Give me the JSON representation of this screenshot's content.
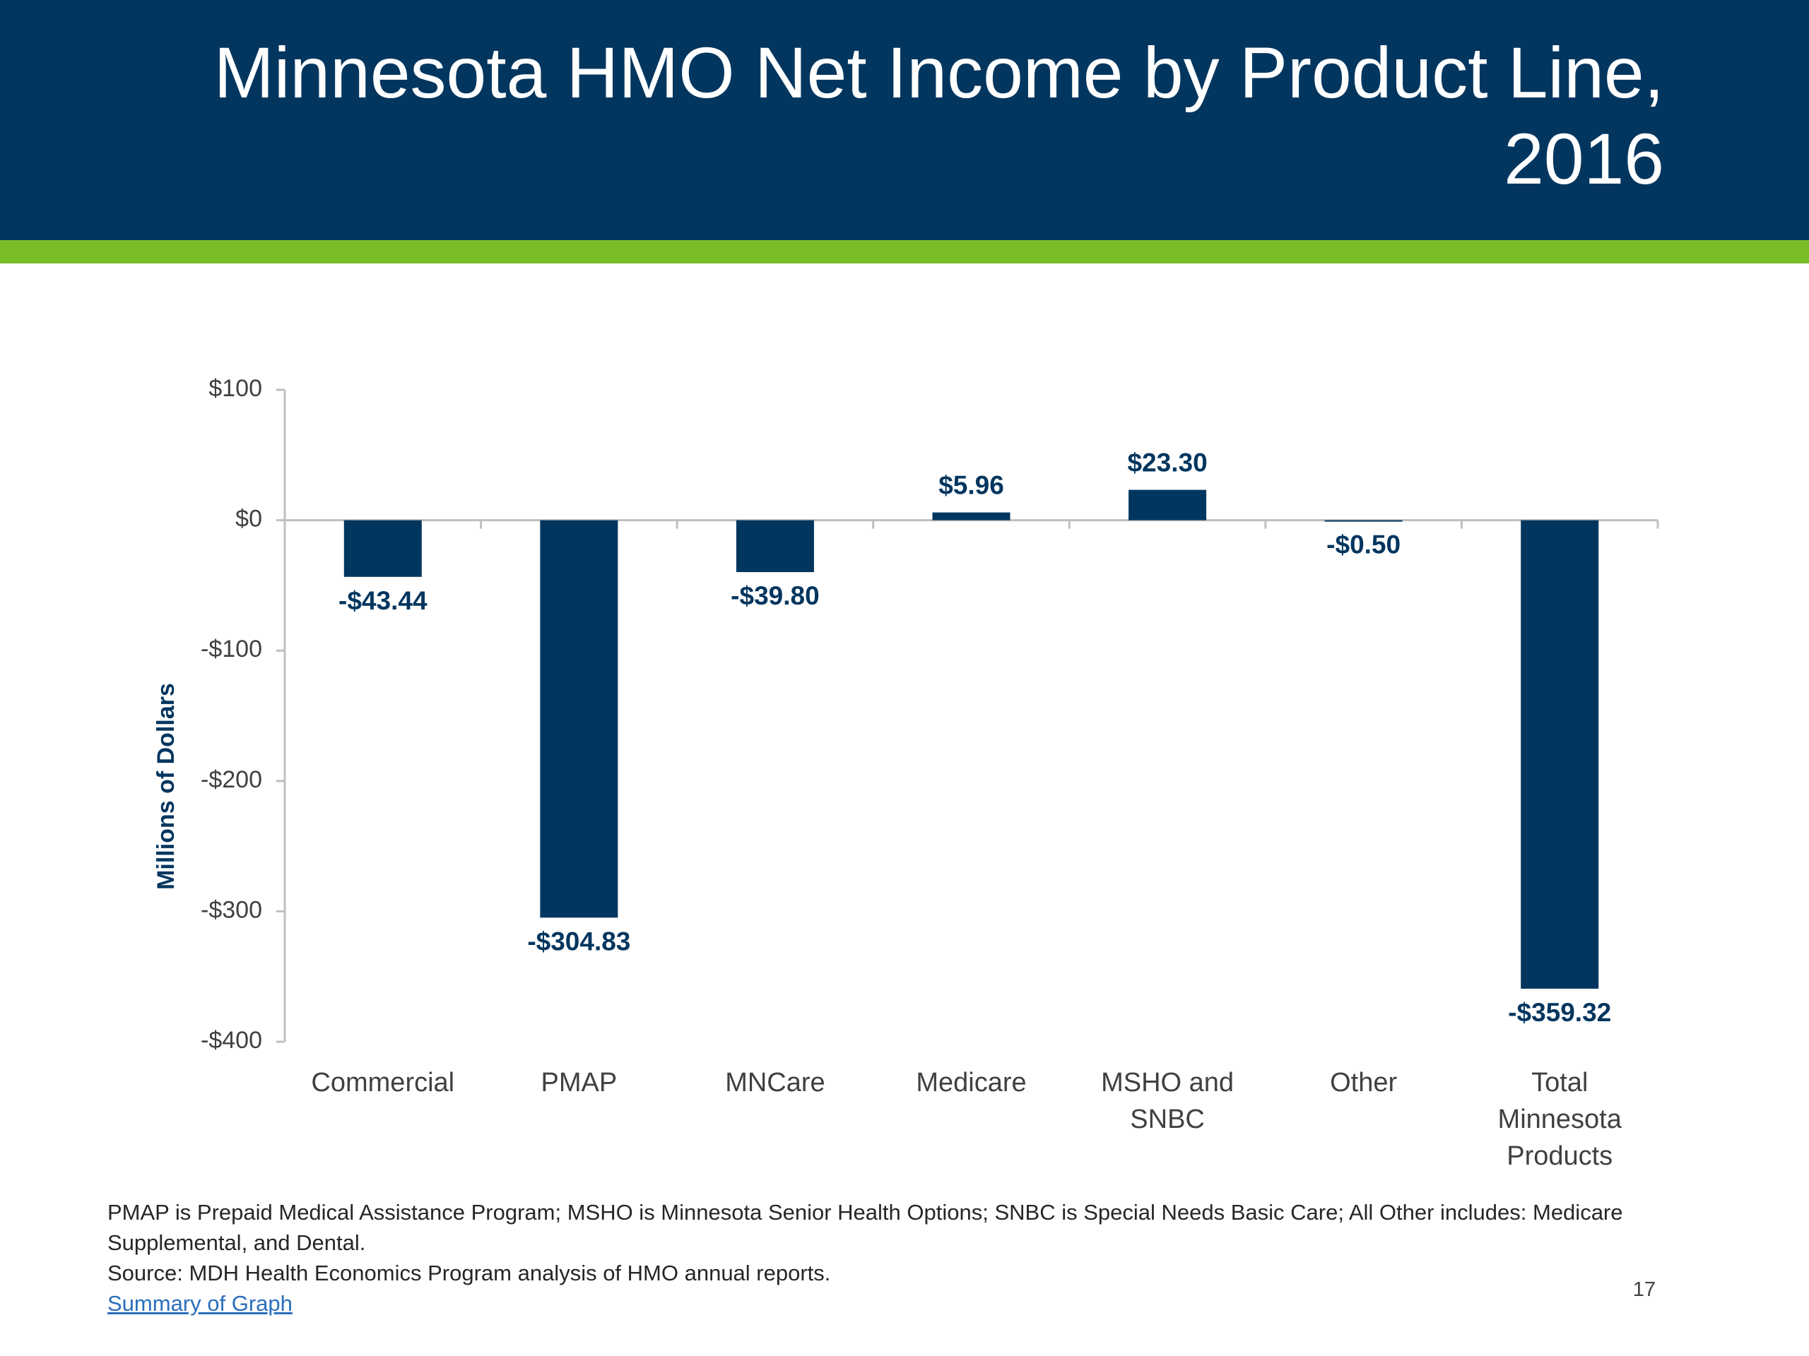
{
  "slide": {
    "title": "Minnesota HMO Net Income by Product Line, 2016",
    "footnote_definitions": "PMAP is Prepaid Medical Assistance Program; MSHO is Minnesota Senior Health Options; SNBC is Special Needs Basic Care; All Other includes: Medicare Supplemental, and Dental.",
    "source": "Source: MDH Health Economics Program analysis of HMO annual reports.",
    "summary_link_label": "Summary of Graph",
    "page_number": "17"
  },
  "colors": {
    "title_band": "#02365f",
    "accent_bar": "#78bc26",
    "bar": "#02365f",
    "axis": "#bfbfbf",
    "link": "#2a6ebb"
  },
  "chart_data": {
    "type": "bar",
    "ylabel": "Millions of Dollars",
    "ylim": [
      -400,
      100
    ],
    "yticks": [
      100,
      0,
      -100,
      -200,
      -300,
      -400
    ],
    "ytick_labels": [
      "$100",
      "$0",
      "-$100",
      "-$200",
      "-$300",
      "-$400"
    ],
    "categories": [
      [
        "Commercial"
      ],
      [
        "PMAP"
      ],
      [
        "MNCare"
      ],
      [
        "Medicare"
      ],
      [
        "MSHO and",
        "SNBC"
      ],
      [
        "Other"
      ],
      [
        "Total",
        "Minnesota",
        "Products"
      ]
    ],
    "values": [
      -43.44,
      -304.83,
      -39.8,
      5.96,
      23.3,
      -0.5,
      -359.32
    ],
    "data_labels": [
      "-$43.44",
      "-$304.83",
      "-$39.80",
      "$5.96",
      "$23.30",
      "-$0.50",
      "-$359.32"
    ],
    "grid": false,
    "legend": "none"
  }
}
